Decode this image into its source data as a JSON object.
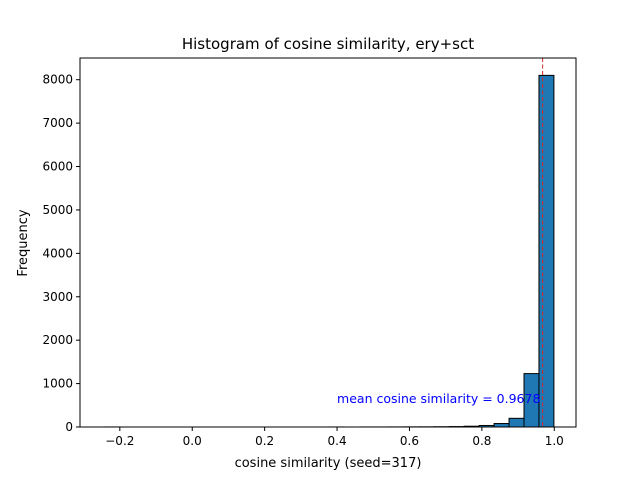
{
  "chart_data": {
    "type": "bar",
    "title": "Histogram of cosine similarity, ery+sct",
    "xlabel": "cosine similarity (seed=317)",
    "ylabel": "Frequency",
    "xlim": [
      -0.31,
      1.06
    ],
    "ylim": [
      0,
      8500
    ],
    "xticks": [
      -0.2,
      0.0,
      0.2,
      0.4,
      0.6,
      0.8,
      1.0
    ],
    "xtick_labels": [
      "−0.2",
      "0.0",
      "0.2",
      "0.4",
      "0.6",
      "0.8",
      "1.0"
    ],
    "yticks": [
      0,
      1000,
      2000,
      3000,
      4000,
      5000,
      6000,
      7000,
      8000
    ],
    "ytick_labels": [
      "0",
      "1000",
      "2000",
      "3000",
      "4000",
      "5000",
      "6000",
      "7000",
      "8000"
    ],
    "bin_width": 0.0413,
    "bins_start": [
      -0.24,
      -0.1987,
      -0.1574,
      -0.1161,
      -0.0748,
      -0.0335,
      0.0078,
      0.0491,
      0.0904,
      0.1317,
      0.173,
      0.2143,
      0.2556,
      0.2969,
      0.3382,
      0.3795,
      0.4208,
      0.4621,
      0.5034,
      0.5447,
      0.586,
      0.6273,
      0.6686,
      0.7099,
      0.7512,
      0.7925,
      0.8338,
      0.8751,
      0.9164,
      0.9577
    ],
    "values": [
      1,
      0,
      0,
      0,
      0,
      0,
      0,
      0,
      0,
      0,
      0,
      0,
      0,
      0,
      0,
      1,
      0,
      1,
      1,
      2,
      3,
      4,
      6,
      10,
      18,
      35,
      80,
      200,
      1230,
      8100
    ],
    "bar_color": "#1f77b4",
    "bar_edge_color": "#000000",
    "mean_line": {
      "x": 0.9678,
      "color": "#d62728",
      "style": "dashed"
    },
    "annotation": {
      "text": "mean cosine similarity = 0.9678",
      "x": 0.4,
      "y": 650,
      "color": "#0000ff"
    }
  }
}
